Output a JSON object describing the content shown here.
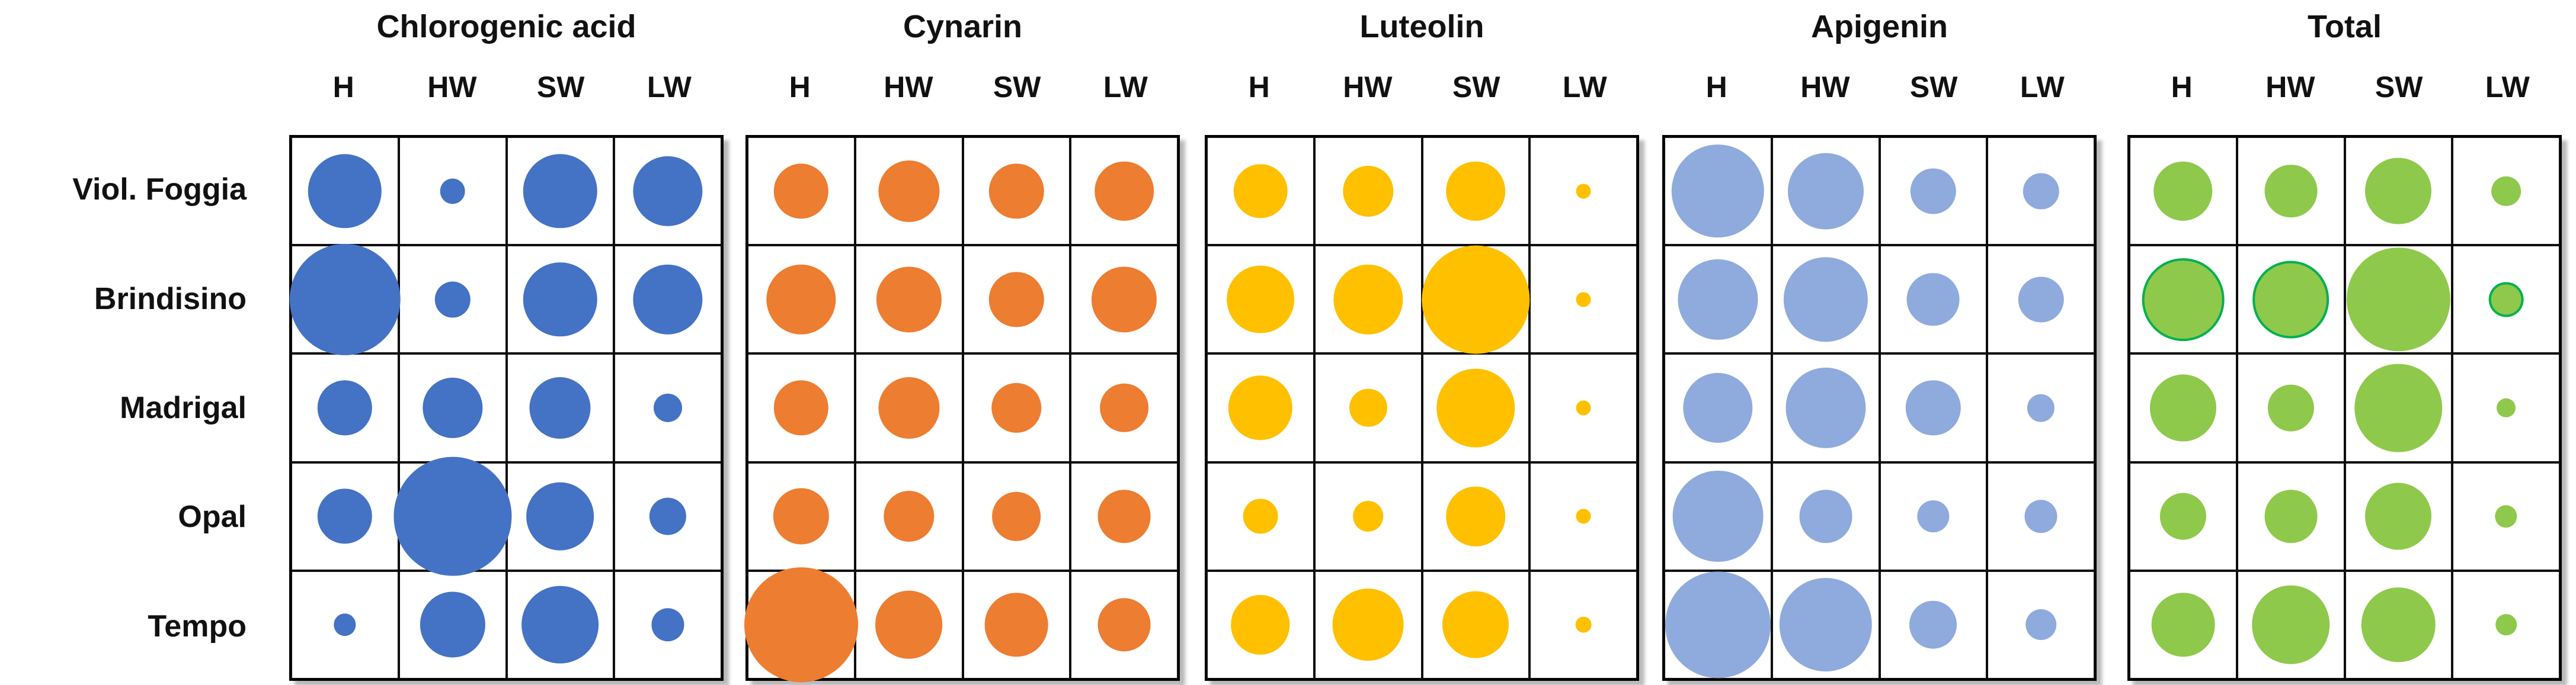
{
  "figure": {
    "kind": "bubble matrix figure",
    "grid_line_color": "#000000",
    "background_color": "#ffffff"
  },
  "chart_data": {
    "type": "heatmap",
    "subtype": "bubble-matrix",
    "title": "",
    "rows": [
      "Viol. Foggia",
      "Brindisino",
      "Madrigal",
      "Opal",
      "Tempo"
    ],
    "columns": [
      "H",
      "HW",
      "SW",
      "LW"
    ],
    "size_note": "values are bubble diameters as a fraction of one grid cell; larger bubble = higher content",
    "panels": [
      {
        "title": "Chlorogenic acid",
        "color": "#4472C4",
        "values": [
          [
            0.7,
            0.24,
            0.7,
            0.66
          ],
          [
            1.05,
            0.34,
            0.7,
            0.66
          ],
          [
            0.52,
            0.57,
            0.58,
            0.27
          ],
          [
            0.52,
            1.12,
            0.64,
            0.35
          ],
          [
            0.21,
            0.62,
            0.73,
            0.31
          ]
        ]
      },
      {
        "title": "Cynarin",
        "color": "#ED7D31",
        "values": [
          [
            0.52,
            0.58,
            0.52,
            0.56
          ],
          [
            0.66,
            0.62,
            0.52,
            0.62
          ],
          [
            0.52,
            0.58,
            0.47,
            0.46
          ],
          [
            0.53,
            0.48,
            0.46,
            0.5
          ],
          [
            1.08,
            0.64,
            0.6,
            0.5
          ]
        ]
      },
      {
        "title": "Luteolin",
        "color": "#FFC000",
        "values": [
          [
            0.51,
            0.48,
            0.56,
            0.14
          ],
          [
            0.64,
            0.66,
            1.02,
            0.14
          ],
          [
            0.61,
            0.36,
            0.74,
            0.14
          ],
          [
            0.33,
            0.29,
            0.56,
            0.14
          ],
          [
            0.56,
            0.68,
            0.63,
            0.15
          ]
        ]
      },
      {
        "title": "Apigenin",
        "color": "#8FAADC",
        "values": [
          [
            0.88,
            0.72,
            0.43,
            0.34
          ],
          [
            0.76,
            0.8,
            0.5,
            0.43
          ],
          [
            0.66,
            0.76,
            0.52,
            0.26
          ],
          [
            0.86,
            0.5,
            0.3,
            0.31
          ],
          [
            1.0,
            0.88,
            0.45,
            0.29
          ]
        ]
      },
      {
        "title": "Total",
        "color": "#8EC94B",
        "outline_color": "#00B050",
        "outlined_cells": [
          [
            1,
            0
          ],
          [
            1,
            1
          ],
          [
            1,
            3
          ]
        ],
        "values": [
          [
            0.56,
            0.5,
            0.63,
            0.28
          ],
          [
            0.78,
            0.73,
            0.98,
            0.33
          ],
          [
            0.63,
            0.44,
            0.83,
            0.18
          ],
          [
            0.44,
            0.5,
            0.63,
            0.21
          ],
          [
            0.6,
            0.74,
            0.7,
            0.2
          ]
        ]
      }
    ]
  }
}
